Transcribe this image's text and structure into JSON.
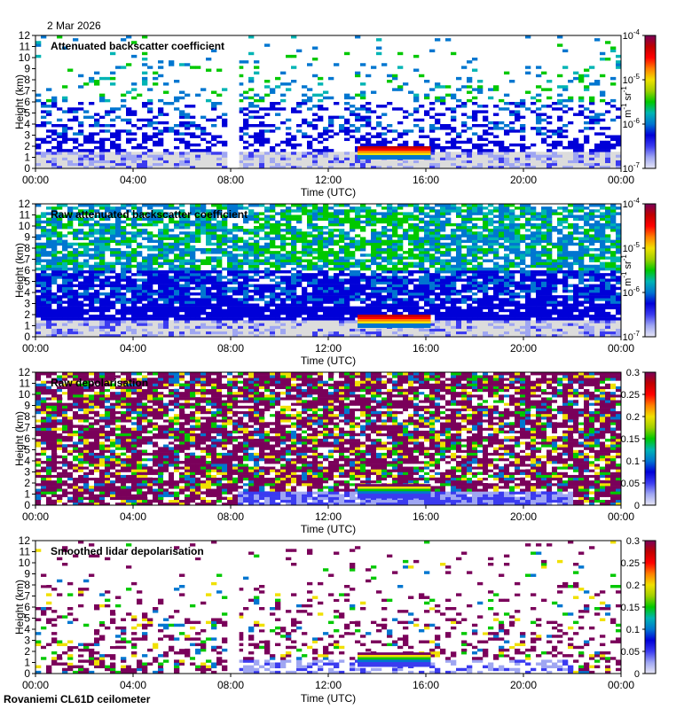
{
  "date_label": "2 Mar 2026",
  "footer": "Rovaniemi CL61D ceilometer",
  "colors": {
    "no_data": "#ffffff",
    "background_signal": "#dcdcdc",
    "colormap": [
      "#e6e6f5",
      "#9fa6f2",
      "#3b3bf0",
      "#0000d8",
      "#0076d0",
      "#00b4b4",
      "#00c800",
      "#a0d000",
      "#f0e000",
      "#ff8000",
      "#ff0000",
      "#c00000",
      "#7a005a"
    ]
  },
  "chart_data": [
    {
      "type": "heatmap",
      "title": "Attenuated backscatter coefficient",
      "xlabel": "Time (UTC)",
      "ylabel": "Height (km)",
      "x_ticks": [
        "00:00",
        "04:00",
        "08:00",
        "12:00",
        "16:00",
        "20:00",
        "00:00"
      ],
      "y_ticks": [
        "0",
        "1",
        "2",
        "3",
        "4",
        "5",
        "6",
        "7",
        "8",
        "9",
        "10",
        "11",
        "12"
      ],
      "ylim": [
        0,
        12
      ],
      "xlim_hours": [
        0,
        24
      ],
      "colorbar": {
        "scale": "log",
        "ticks": [
          {
            "base": "10",
            "exp": "-4"
          },
          {
            "base": "10",
            "exp": "-5"
          },
          {
            "base": "10",
            "exp": "-6"
          },
          {
            "base": "10",
            "exp": "-7"
          }
        ],
        "unit_base": "m",
        "unit_exp1": "-1",
        "unit_mid": " sr",
        "unit_exp2": "-1"
      },
      "gaps_hours": [
        [
          7.9,
          8.35
        ]
      ],
      "features": [
        {
          "name": "low cloud layer",
          "start_hour": 13.2,
          "end_hour": 16.2,
          "base_km": 0.8,
          "top_km": 2.0
        }
      ]
    },
    {
      "type": "heatmap",
      "title": "Raw attenuated backscatter coefficient",
      "xlabel": "Time (UTC)",
      "ylabel": "Height (km)",
      "x_ticks": [
        "00:00",
        "04:00",
        "08:00",
        "12:00",
        "16:00",
        "20:00",
        "00:00"
      ],
      "y_ticks": [
        "0",
        "1",
        "2",
        "3",
        "4",
        "5",
        "6",
        "7",
        "8",
        "9",
        "10",
        "11",
        "12"
      ],
      "ylim": [
        0,
        12
      ],
      "xlim_hours": [
        0,
        24
      ],
      "colorbar": {
        "scale": "log",
        "ticks": [
          {
            "base": "10",
            "exp": "-4"
          },
          {
            "base": "10",
            "exp": "-5"
          },
          {
            "base": "10",
            "exp": "-6"
          },
          {
            "base": "10",
            "exp": "-7"
          }
        ],
        "unit_base": "m",
        "unit_exp1": "-1",
        "unit_mid": " sr",
        "unit_exp2": "-1"
      },
      "gaps_hours": [],
      "features": [
        {
          "name": "low cloud layer",
          "start_hour": 13.2,
          "end_hour": 16.2,
          "base_km": 0.8,
          "top_km": 2.0
        }
      ]
    },
    {
      "type": "heatmap",
      "title": "Raw depolarisation",
      "xlabel": "Time (UTC)",
      "ylabel": "Height (km)",
      "x_ticks": [
        "00:00",
        "04:00",
        "08:00",
        "12:00",
        "16:00",
        "20:00",
        "00:00"
      ],
      "y_ticks": [
        "0",
        "1",
        "2",
        "3",
        "4",
        "5",
        "6",
        "7",
        "8",
        "9",
        "10",
        "11",
        "12"
      ],
      "ylim": [
        0,
        12
      ],
      "xlim_hours": [
        0,
        24
      ],
      "colorbar": {
        "scale": "linear",
        "ticks": [
          "0.3",
          "0.25",
          "0.2",
          "0.15",
          "0.1",
          "0.05",
          "0"
        ],
        "range": [
          0,
          0.3
        ]
      },
      "gaps_hours": [],
      "features": [
        {
          "name": "low cloud layer",
          "start_hour": 13.2,
          "end_hour": 16.2,
          "base_km": 0.6,
          "top_km": 1.9
        }
      ]
    },
    {
      "type": "heatmap",
      "title": "Smoothed lidar depolarisation",
      "xlabel": "Time (UTC)",
      "ylabel": "Height (km)",
      "x_ticks": [
        "00:00",
        "04:00",
        "08:00",
        "12:00",
        "16:00",
        "20:00",
        "00:00"
      ],
      "y_ticks": [
        "0",
        "1",
        "2",
        "3",
        "4",
        "5",
        "6",
        "7",
        "8",
        "9",
        "10",
        "11",
        "12"
      ],
      "ylim": [
        0,
        12
      ],
      "xlim_hours": [
        0,
        24
      ],
      "colorbar": {
        "scale": "linear",
        "ticks": [
          "0.3",
          "0.25",
          "0.2",
          "0.15",
          "0.1",
          "0.05",
          "0"
        ],
        "range": [
          0,
          0.3
        ]
      },
      "gaps_hours": [
        [
          7.9,
          8.35
        ]
      ],
      "features": [
        {
          "name": "low cloud layer",
          "start_hour": 13.2,
          "end_hour": 16.2,
          "base_km": 0.6,
          "top_km": 1.9
        }
      ]
    }
  ]
}
